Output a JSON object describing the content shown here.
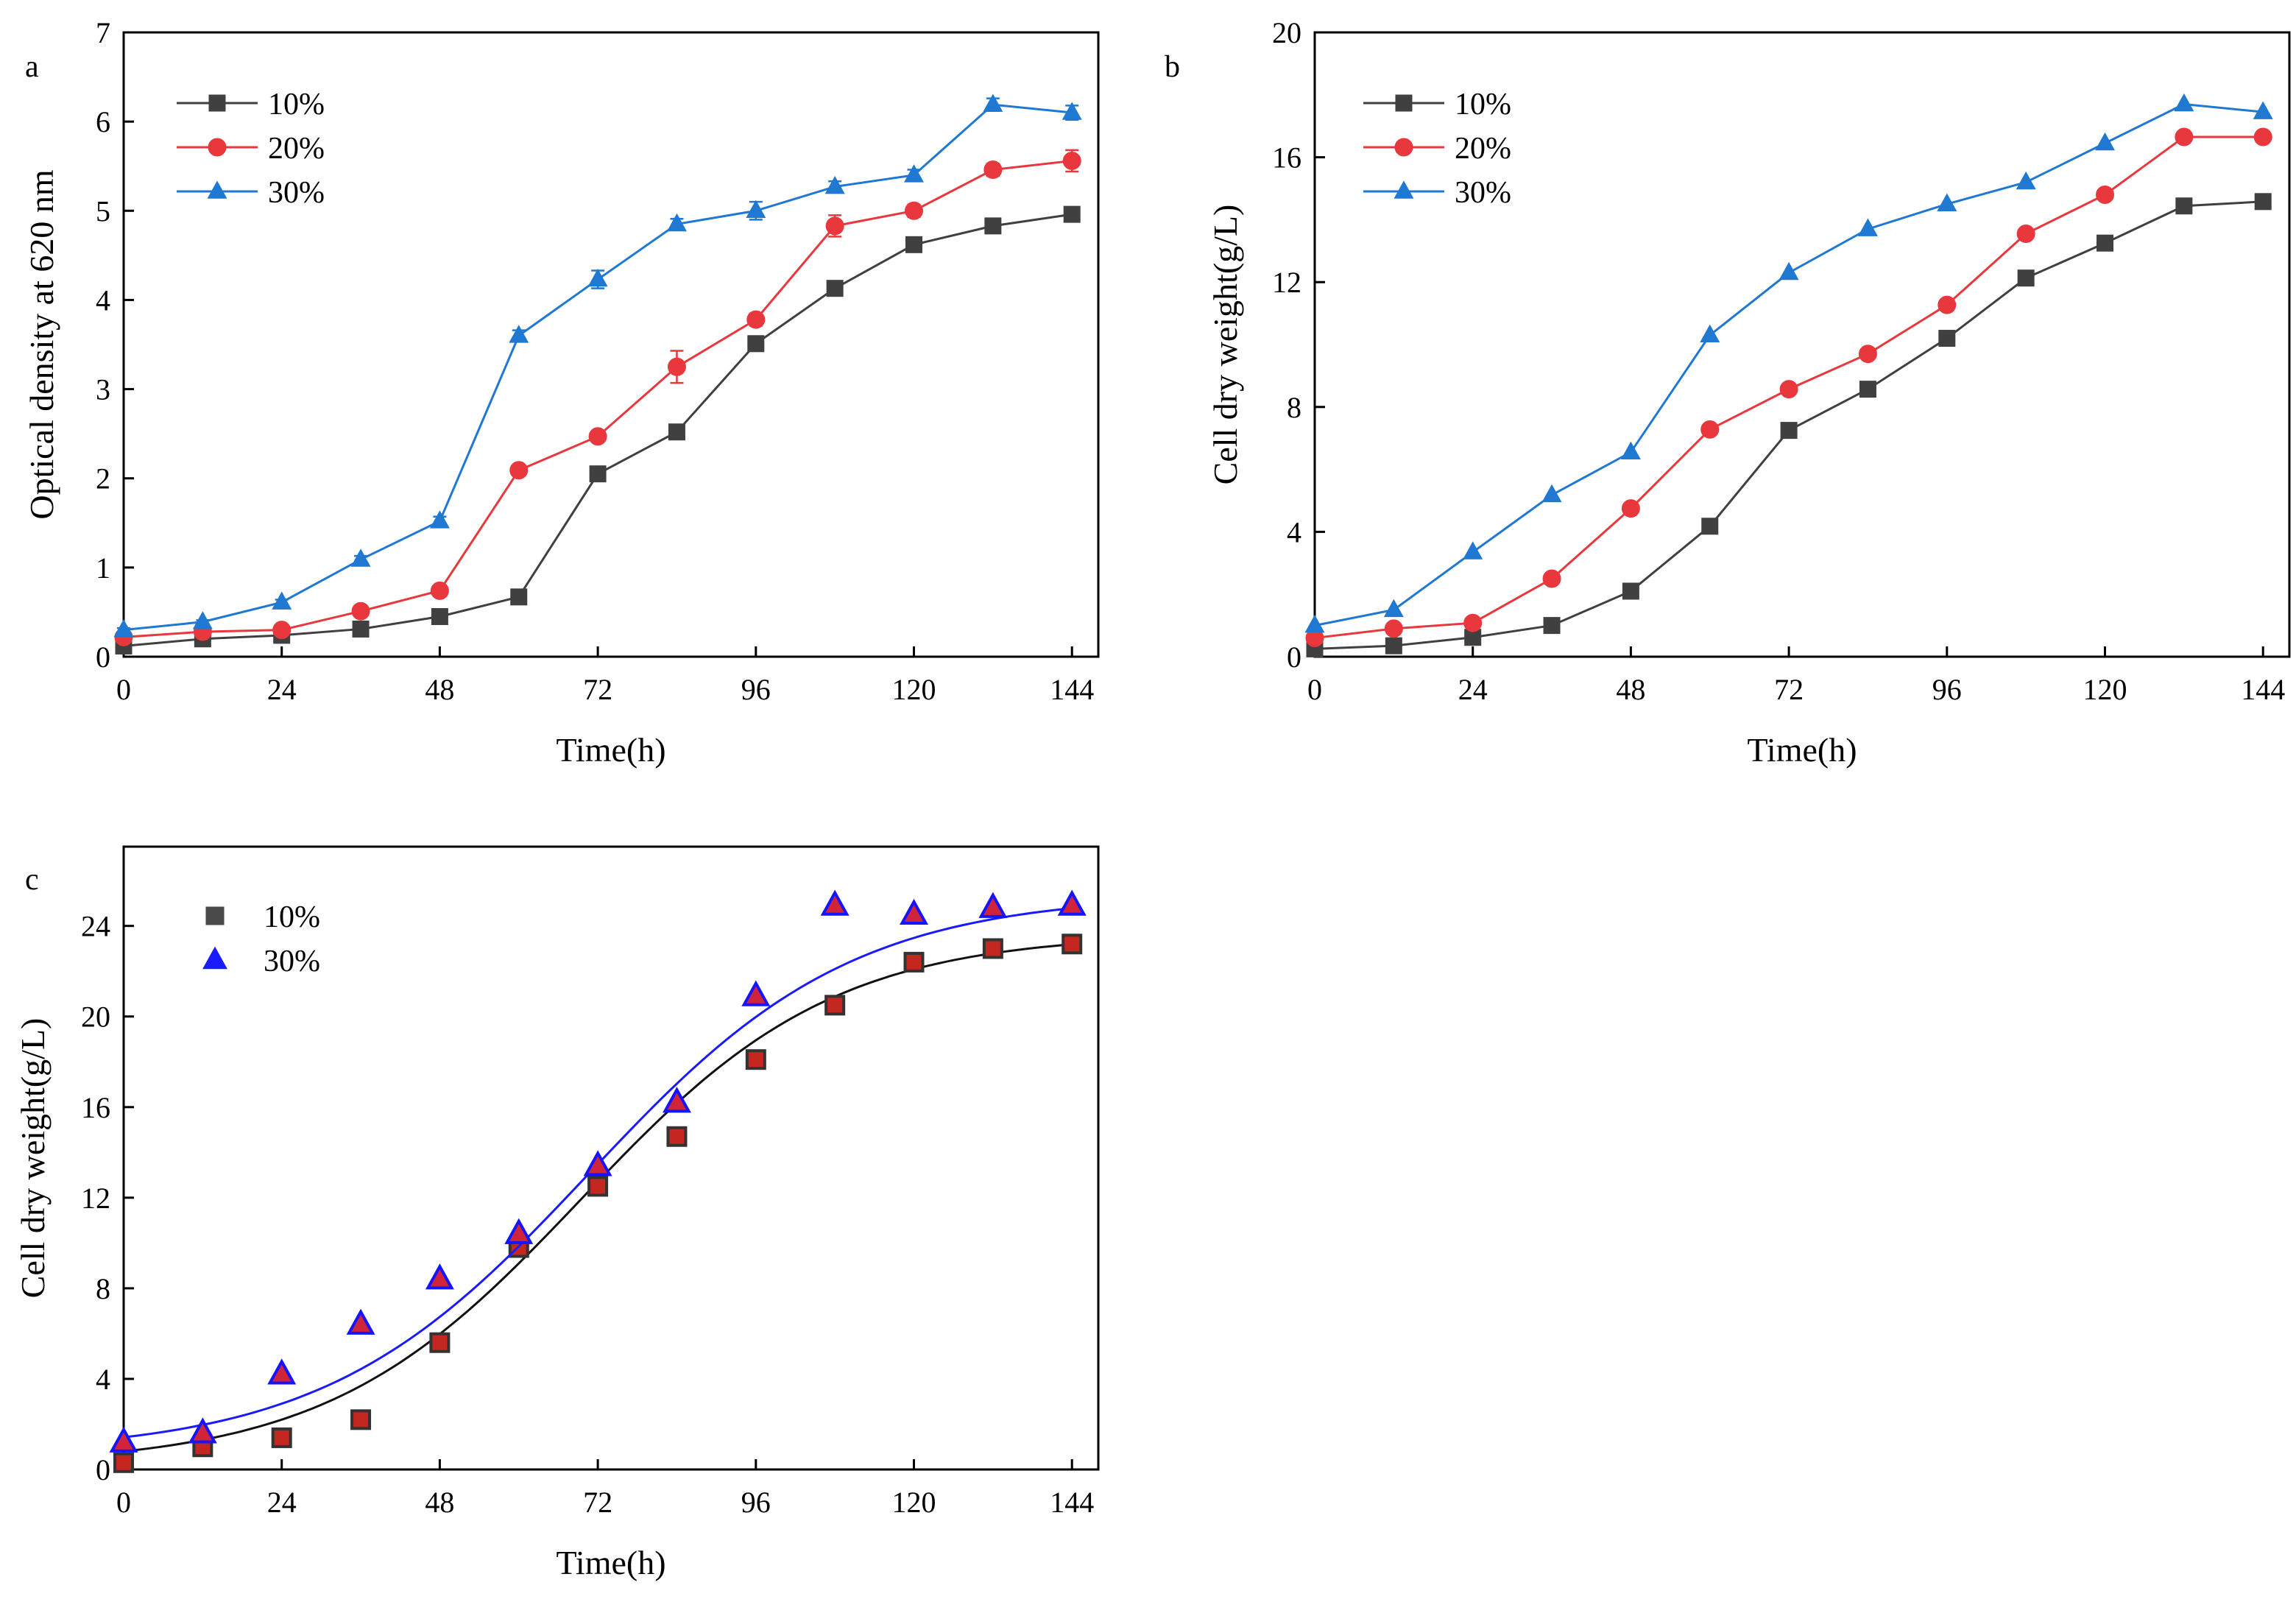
{
  "figure": {
    "colors": {
      "10%": "#404040",
      "20%": "#e8383d",
      "30%": "#1f78d1",
      "fit_10": "#111111",
      "fit_30": "#1a1aff",
      "c_square": "#c4271f",
      "c_triangle_fill": "#d0243a",
      "c_triangle_edge": "#1414ff"
    }
  },
  "chart_data": [
    {
      "id": "a",
      "type": "line",
      "panel_label": "a",
      "xlabel": "Time(h)",
      "ylabel": "Optical density at 620 nm",
      "xlim": [
        0,
        148
      ],
      "ylim": [
        0,
        7
      ],
      "xticks": [
        0,
        24,
        48,
        72,
        96,
        120,
        144
      ],
      "yticks": [
        0,
        1,
        2,
        3,
        4,
        5,
        6,
        7
      ],
      "x": [
        0,
        12,
        24,
        36,
        48,
        60,
        72,
        84,
        96,
        108,
        120,
        132,
        144
      ],
      "legend_position": "top-left",
      "series": [
        {
          "name": "10%",
          "marker": "square",
          "values": [
            0.12,
            0.2,
            0.24,
            0.31,
            0.45,
            0.67,
            2.05,
            2.52,
            3.51,
            4.13,
            4.62,
            4.83,
            4.96
          ],
          "errors": [
            0.02,
            0.02,
            0.02,
            0.02,
            0.03,
            0.03,
            0.05,
            0.06,
            0.06,
            0.06,
            0.06,
            0.06,
            0.07
          ]
        },
        {
          "name": "20%",
          "marker": "circle",
          "values": [
            0.22,
            0.28,
            0.3,
            0.51,
            0.74,
            2.09,
            2.47,
            3.25,
            3.78,
            4.83,
            5.0,
            5.46,
            5.56
          ],
          "errors": [
            0.02,
            0.02,
            0.02,
            0.03,
            0.04,
            0.05,
            0.06,
            0.18,
            0.07,
            0.12,
            0.07,
            0.07,
            0.12
          ]
        },
        {
          "name": "30%",
          "marker": "triangle",
          "values": [
            0.3,
            0.39,
            0.61,
            1.09,
            1.52,
            3.6,
            4.23,
            4.85,
            5.0,
            5.27,
            5.4,
            6.19,
            6.1
          ],
          "errors": [
            0.02,
            0.02,
            0.03,
            0.04,
            0.05,
            0.06,
            0.1,
            0.06,
            0.1,
            0.06,
            0.06,
            0.07,
            0.08
          ]
        }
      ]
    },
    {
      "id": "b",
      "type": "line",
      "panel_label": "b",
      "xlabel": "Time(h)",
      "ylabel": "Cell dry weight(g/L)",
      "xlim": [
        0,
        148
      ],
      "ylim": [
        0,
        20
      ],
      "xticks": [
        0,
        24,
        48,
        72,
        96,
        120,
        144
      ],
      "yticks": [
        0,
        4,
        8,
        12,
        16,
        20
      ],
      "x": [
        0,
        12,
        24,
        36,
        48,
        60,
        72,
        84,
        96,
        108,
        120,
        132,
        144
      ],
      "legend_position": "top-left",
      "series": [
        {
          "name": "10%",
          "marker": "square",
          "values": [
            0.25,
            0.35,
            0.62,
            1.0,
            2.1,
            4.18,
            7.25,
            8.57,
            10.2,
            12.13,
            13.25,
            14.44,
            14.58
          ]
        },
        {
          "name": "20%",
          "marker": "circle",
          "values": [
            0.6,
            0.9,
            1.08,
            2.5,
            4.75,
            7.28,
            8.57,
            9.7,
            11.27,
            13.55,
            14.8,
            16.65,
            16.65
          ]
        },
        {
          "name": "30%",
          "marker": "triangle",
          "values": [
            1.0,
            1.5,
            3.35,
            5.18,
            6.55,
            10.3,
            12.3,
            13.7,
            14.5,
            15.2,
            16.45,
            17.7,
            17.45
          ]
        }
      ]
    },
    {
      "id": "c",
      "type": "scatter",
      "panel_label": "c",
      "xlabel": "Time(h)",
      "ylabel": "Cell dry weight(g/L)",
      "xlim": [
        0,
        148
      ],
      "ylim": [
        0,
        27.5
      ],
      "xticks": [
        0,
        24,
        48,
        72,
        96,
        120,
        144
      ],
      "yticks": [
        0,
        4,
        8,
        12,
        16,
        20,
        24
      ],
      "x": [
        0,
        12,
        24,
        36,
        48,
        60,
        72,
        84,
        96,
        108,
        120,
        132,
        144
      ],
      "legend_position": "top-left",
      "series": [
        {
          "name": "10%",
          "marker": "square",
          "values": [
            0.3,
            1.0,
            1.4,
            2.2,
            5.6,
            9.8,
            12.5,
            14.7,
            18.1,
            20.5,
            22.4,
            23.0,
            23.2
          ],
          "fit": "sigmoid"
        },
        {
          "name": "30%",
          "marker": "triangle",
          "values": [
            1.2,
            1.6,
            4.2,
            6.4,
            8.4,
            10.4,
            13.4,
            16.2,
            20.9,
            24.9,
            24.5,
            24.8,
            24.9
          ],
          "fit": "sigmoid"
        }
      ]
    }
  ]
}
